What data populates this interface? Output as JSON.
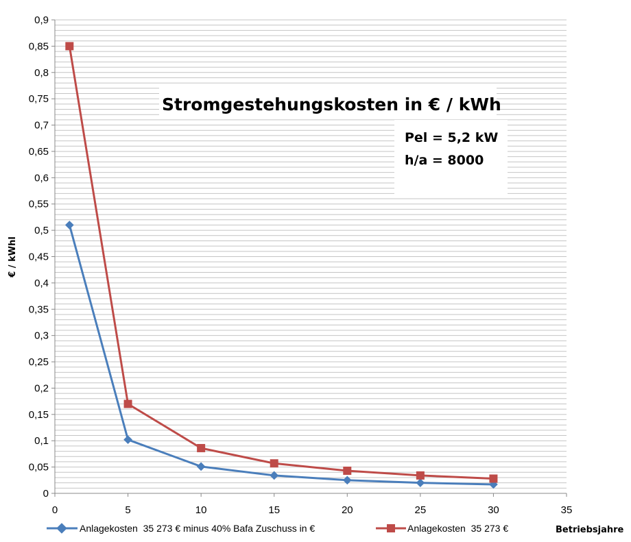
{
  "chart_data": {
    "type": "line",
    "title": "Stromgestehungskosten in € / kWh",
    "notes": [
      "Pel = 5,2 kW",
      "h/a = 8000"
    ],
    "xlabel": "Betriebsjahre",
    "ylabel": "€ / kWhl",
    "xlim": [
      0,
      35
    ],
    "ylim": [
      0,
      0.9
    ],
    "x_ticks": [
      "0",
      "5",
      "10",
      "15",
      "20",
      "25",
      "30",
      "35"
    ],
    "y_ticks": [
      "0",
      "0,05",
      "0,1",
      "0,15",
      "0,2",
      "0,25",
      "0,3",
      "0,35",
      "0,4",
      "0,45",
      "0,5",
      "0,55",
      "0,6",
      "0,65",
      "0,7",
      "0,75",
      "0,8",
      "0,85",
      "0,9"
    ],
    "grid": true,
    "legend_position": "bottom",
    "series": [
      {
        "name": "Anlagekosten  35 273 € minus 40% Bafa Zuschuss in €",
        "color": "#4a7ebb",
        "marker": "diamond",
        "x": [
          1,
          5,
          10,
          15,
          20,
          25,
          30
        ],
        "y": [
          0.51,
          0.102,
          0.051,
          0.034,
          0.025,
          0.02,
          0.017
        ]
      },
      {
        "name": "Anlagekosten  35 273 €",
        "color": "#be4b48",
        "marker": "square",
        "x": [
          1,
          5,
          10,
          15,
          20,
          25,
          30
        ],
        "y": [
          0.85,
          0.17,
          0.086,
          0.057,
          0.043,
          0.034,
          0.028
        ]
      }
    ]
  }
}
